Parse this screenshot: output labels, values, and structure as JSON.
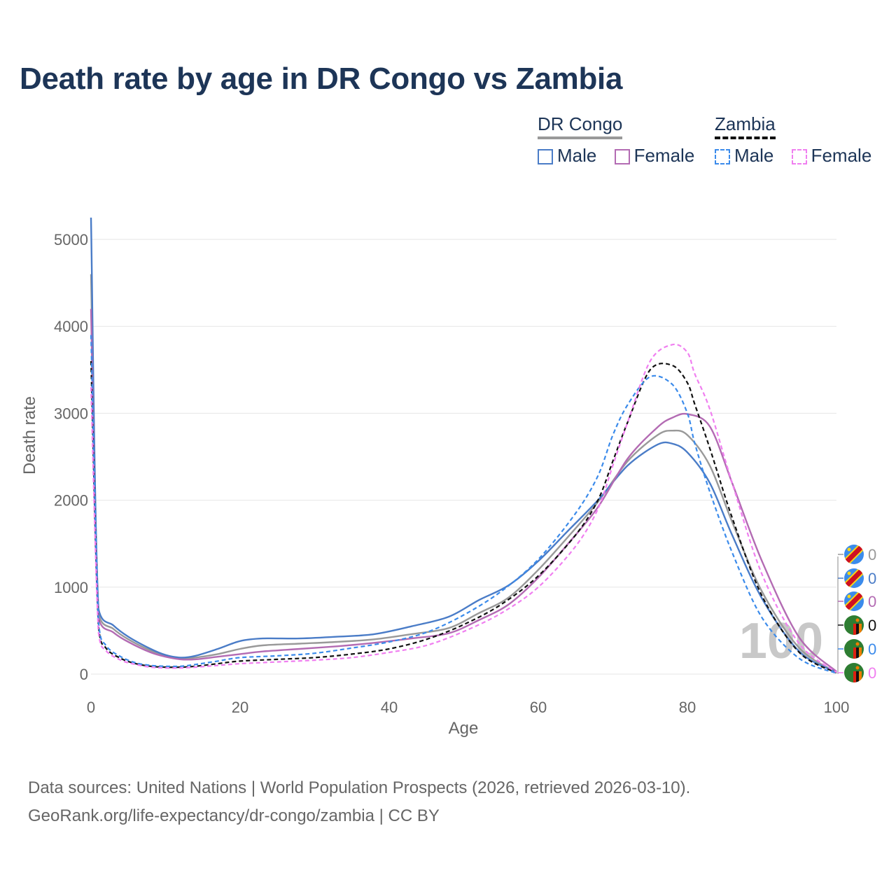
{
  "title": "Death rate by age in DR Congo vs Zambia",
  "legend": {
    "groups": [
      {
        "name": "DR Congo",
        "items": [
          {
            "label": "Male",
            "color": "#4a7cc7"
          },
          {
            "label": "Female",
            "color": "#b36bb3"
          }
        ]
      },
      {
        "name": "Zambia",
        "items": [
          {
            "label": "Male",
            "color": "#3b8beb"
          },
          {
            "label": "Female",
            "color": "#f07ff0"
          }
        ]
      }
    ]
  },
  "year_label": "100",
  "end_markers": [
    {
      "country": "DR Congo",
      "value": "0",
      "color": "#999999",
      "flag": "dr-congo-flag"
    },
    {
      "country": "DR Congo",
      "value": "0",
      "color": "#4a7cc7",
      "flag": "dr-congo-flag"
    },
    {
      "country": "DR Congo",
      "value": "0",
      "color": "#b36bb3",
      "flag": "dr-congo-flag"
    },
    {
      "country": "Zambia",
      "value": "0",
      "color": "#111111",
      "flag": "zambia-flag"
    },
    {
      "country": "Zambia",
      "value": "0",
      "color": "#3b8beb",
      "flag": "zambia-flag"
    },
    {
      "country": "Zambia",
      "value": "0",
      "color": "#f07ff0",
      "flag": "zambia-flag"
    }
  ],
  "footer": {
    "line1": "Data sources: United Nations | World Population Prospects (2026, retrieved 2026-03-10).",
    "line2": "GeoRank.org/life-expectancy/dr-congo/zambia | CC BY"
  },
  "chart_data": {
    "type": "line",
    "xlabel": "Age",
    "ylabel": "Death rate",
    "xlim": [
      0,
      100
    ],
    "ylim": [
      0,
      5000
    ],
    "xticks": [
      0,
      20,
      40,
      60,
      80,
      100
    ],
    "yticks": [
      0,
      1000,
      2000,
      3000,
      4000,
      5000
    ],
    "series": [
      {
        "name": "DR Congo Total",
        "color": "#999999",
        "dash": false,
        "x": [
          0,
          1,
          3,
          5,
          8,
          10,
          12,
          14,
          17,
          20,
          23,
          28,
          33,
          38,
          43,
          48,
          52,
          56,
          60,
          64,
          68,
          72,
          76,
          78,
          80,
          83,
          86,
          90,
          95,
          100
        ],
        "y": [
          4600,
          700,
          520,
          400,
          270,
          210,
          180,
          190,
          230,
          290,
          330,
          350,
          370,
          400,
          460,
          530,
          700,
          880,
          1200,
          1580,
          1980,
          2450,
          2750,
          2800,
          2750,
          2400,
          1750,
          950,
          300,
          20
        ]
      },
      {
        "name": "DR Congo Male",
        "color": "#4a7cc7",
        "dash": false,
        "x": [
          0,
          1,
          3,
          5,
          8,
          10,
          12,
          14,
          17,
          20,
          23,
          28,
          33,
          38,
          43,
          48,
          52,
          56,
          60,
          64,
          68,
          72,
          76,
          78,
          80,
          83,
          86,
          90,
          95,
          100
        ],
        "y": [
          5250,
          750,
          560,
          430,
          290,
          220,
          190,
          210,
          290,
          380,
          410,
          410,
          430,
          460,
          550,
          660,
          850,
          1020,
          1300,
          1650,
          2000,
          2400,
          2640,
          2650,
          2550,
          2200,
          1600,
          870,
          260,
          20
        ]
      },
      {
        "name": "DR Congo Female",
        "color": "#b36bb3",
        "dash": false,
        "x": [
          0,
          1,
          3,
          5,
          8,
          10,
          12,
          14,
          17,
          20,
          23,
          28,
          33,
          38,
          43,
          48,
          52,
          56,
          60,
          64,
          68,
          72,
          76,
          78,
          80,
          83,
          86,
          90,
          95,
          100
        ],
        "y": [
          4200,
          650,
          480,
          370,
          250,
          200,
          170,
          170,
          200,
          230,
          260,
          290,
          320,
          360,
          410,
          470,
          620,
          800,
          1110,
          1500,
          1920,
          2480,
          2840,
          2950,
          2990,
          2850,
          2200,
          1300,
          420,
          30
        ]
      },
      {
        "name": "Zambia Total",
        "color": "#111111",
        "dash": true,
        "x": [
          0,
          1,
          2,
          4,
          6,
          8,
          10,
          12,
          14,
          17,
          20,
          25,
          30,
          35,
          40,
          45,
          50,
          55,
          60,
          65,
          68,
          70,
          72,
          75,
          78,
          80,
          81,
          83,
          86,
          90,
          95,
          100
        ],
        "y": [
          3600,
          550,
          300,
          180,
          120,
          90,
          80,
          80,
          90,
          120,
          150,
          170,
          190,
          230,
          290,
          400,
          570,
          800,
          1130,
          1600,
          2000,
          2450,
          2900,
          3500,
          3550,
          3350,
          3100,
          2600,
          1800,
          900,
          250,
          15
        ]
      },
      {
        "name": "Zambia Male",
        "color": "#3b8beb",
        "dash": true,
        "x": [
          0,
          1,
          2,
          4,
          6,
          8,
          10,
          12,
          14,
          17,
          20,
          25,
          30,
          35,
          40,
          45,
          50,
          55,
          60,
          65,
          68,
          70,
          72,
          75,
          78,
          80,
          81,
          83,
          86,
          90,
          95,
          100
        ],
        "y": [
          3900,
          600,
          330,
          200,
          130,
          100,
          90,
          90,
          110,
          150,
          190,
          210,
          240,
          300,
          370,
          480,
          680,
          950,
          1320,
          1850,
          2280,
          2750,
          3100,
          3420,
          3330,
          3000,
          2650,
          2100,
          1400,
          650,
          180,
          10
        ]
      },
      {
        "name": "Zambia Female",
        "color": "#f07ff0",
        "dash": true,
        "x": [
          0,
          1,
          2,
          4,
          6,
          8,
          10,
          12,
          14,
          17,
          20,
          25,
          30,
          35,
          40,
          45,
          50,
          55,
          60,
          65,
          68,
          70,
          72,
          75,
          78,
          80,
          81,
          83,
          86,
          90,
          95,
          100
        ],
        "y": [
          3300,
          480,
          270,
          160,
          110,
          80,
          70,
          70,
          80,
          100,
          120,
          140,
          160,
          190,
          250,
          330,
          490,
          700,
          1000,
          1470,
          1900,
          2400,
          2900,
          3600,
          3790,
          3700,
          3450,
          3050,
          2200,
          1150,
          350,
          20
        ]
      }
    ]
  }
}
